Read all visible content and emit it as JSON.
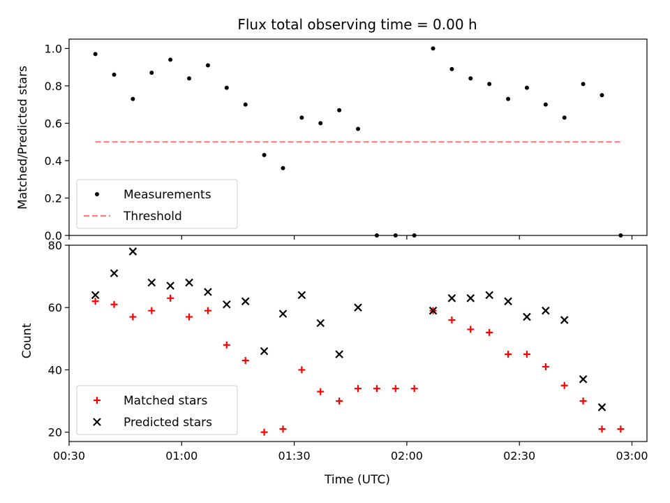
{
  "chart_data": [
    {
      "type": "scatter",
      "title": "Flux total observing time = 0.00 h",
      "xlabel": "",
      "ylabel": "Matched/Predicted stars",
      "ylim": [
        0.0,
        1.05
      ],
      "yticks": [
        0.0,
        0.2,
        0.4,
        0.6,
        0.8,
        1.0
      ],
      "ytick_labels": [
        "0.0",
        "0.2",
        "0.4",
        "0.6",
        "0.8",
        "1.0"
      ],
      "legend_position": "lower-left",
      "series": [
        {
          "name": "Measurements",
          "marker": "dot",
          "color": "#000000",
          "x": [
            "00:37",
            "00:42",
            "00:47",
            "00:52",
            "00:57",
            "01:02",
            "01:07",
            "01:12",
            "01:17",
            "01:22",
            "01:27",
            "01:32",
            "01:37",
            "01:42",
            "01:47",
            "01:52",
            "01:57",
            "02:02",
            "02:07",
            "02:12",
            "02:17",
            "02:22",
            "02:27",
            "02:32",
            "02:37",
            "02:42",
            "02:47",
            "02:52",
            "02:57"
          ],
          "y": [
            0.97,
            0.86,
            0.73,
            0.87,
            0.94,
            0.84,
            0.91,
            0.79,
            0.7,
            0.43,
            0.36,
            0.63,
            0.6,
            0.67,
            0.57,
            0.0,
            0.0,
            0.0,
            1.0,
            0.89,
            0.84,
            0.81,
            0.73,
            0.79,
            0.7,
            0.63,
            0.81,
            0.75,
            0.0
          ]
        },
        {
          "name": "Threshold",
          "style": "dashed",
          "color": "#ff7b7b",
          "x": [
            "00:37",
            "02:57"
          ],
          "y": [
            0.5,
            0.5
          ]
        }
      ]
    },
    {
      "type": "scatter",
      "title": "",
      "xlabel": "Time (UTC)",
      "ylabel": "Count",
      "ylim": [
        17,
        80
      ],
      "yticks": [
        20,
        40,
        60,
        80
      ],
      "ytick_labels": [
        "20",
        "40",
        "60",
        "80"
      ],
      "xticks": [
        "00:30",
        "01:00",
        "01:30",
        "02:00",
        "02:30",
        "03:00"
      ],
      "legend_position": "lower-left",
      "series": [
        {
          "name": "Matched stars",
          "marker": "plus",
          "color": "#ff0000",
          "x": [
            "00:37",
            "00:42",
            "00:47",
            "00:52",
            "00:57",
            "01:02",
            "01:07",
            "01:12",
            "01:17",
            "01:22",
            "01:27",
            "01:32",
            "01:37",
            "01:42",
            "01:47",
            "01:52",
            "01:57",
            "02:02",
            "02:07",
            "02:12",
            "02:17",
            "02:22",
            "02:27",
            "02:32",
            "02:37",
            "02:42",
            "02:47",
            "02:52",
            "02:57"
          ],
          "y": [
            62,
            61,
            57,
            59,
            63,
            57,
            59,
            48,
            43,
            20,
            21,
            40,
            33,
            30,
            34,
            34,
            34,
            34,
            59,
            56,
            53,
            52,
            45,
            45,
            41,
            35,
            30,
            21,
            21
          ]
        },
        {
          "name": "Predicted stars",
          "marker": "x",
          "color": "#000000",
          "x": [
            "00:37",
            "00:42",
            "00:47",
            "00:52",
            "00:57",
            "01:02",
            "01:07",
            "01:12",
            "01:17",
            "01:22",
            "01:27",
            "01:32",
            "01:37",
            "01:42",
            "01:47",
            "02:07",
            "02:12",
            "02:17",
            "02:22",
            "02:27",
            "02:32",
            "02:37",
            "02:42",
            "02:47",
            "02:52"
          ],
          "y": [
            64,
            71,
            78,
            68,
            67,
            68,
            65,
            61,
            62,
            46,
            58,
            64,
            55,
            45,
            60,
            59,
            63,
            63,
            64,
            62,
            57,
            59,
            56,
            37,
            28
          ]
        }
      ]
    }
  ]
}
